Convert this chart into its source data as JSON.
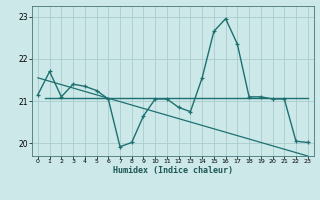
{
  "x": [
    0,
    1,
    2,
    3,
    4,
    5,
    6,
    7,
    8,
    9,
    10,
    11,
    12,
    13,
    14,
    15,
    16,
    17,
    18,
    19,
    20,
    21,
    22,
    23
  ],
  "y_main": [
    21.15,
    21.7,
    21.1,
    21.4,
    21.35,
    21.25,
    21.05,
    19.92,
    20.02,
    20.65,
    21.05,
    21.05,
    20.85,
    20.75,
    21.55,
    22.65,
    22.95,
    22.35,
    21.1,
    21.1,
    21.05,
    21.05,
    20.05,
    20.02
  ],
  "y_hline": 21.07,
  "xlabel": "Humidex (Indice chaleur)",
  "xlim": [
    -0.5,
    23.5
  ],
  "ylim": [
    19.7,
    23.25
  ],
  "yticks": [
    20,
    21,
    22,
    23
  ],
  "xticks": [
    0,
    1,
    2,
    3,
    4,
    5,
    6,
    7,
    8,
    9,
    10,
    11,
    12,
    13,
    14,
    15,
    16,
    17,
    18,
    19,
    20,
    21,
    22,
    23
  ],
  "line_color": "#1e7070",
  "bg_color": "#cce8e8",
  "grid_color": "#aacccc",
  "trend_x_start": 0,
  "trend_x_end": 23,
  "trend_y_start": 21.55,
  "trend_y_end": 19.7
}
